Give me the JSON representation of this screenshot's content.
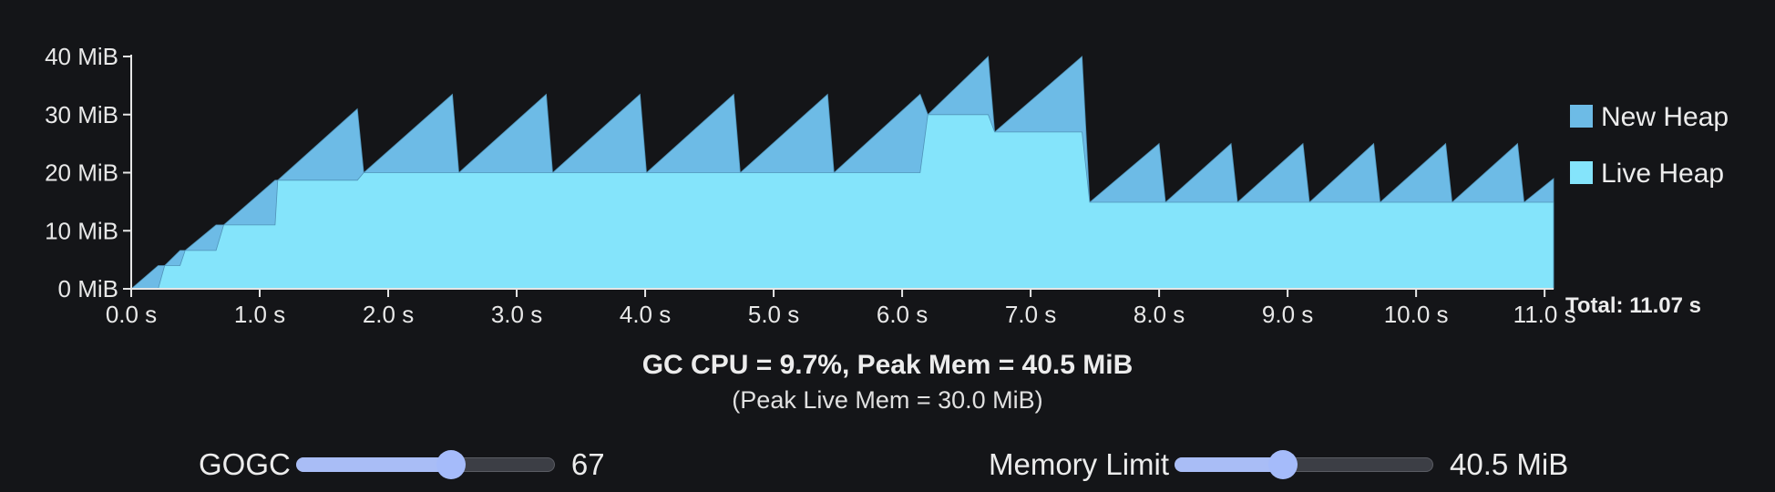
{
  "chart_data": {
    "type": "area",
    "title": "",
    "xlabel": "",
    "ylabel": "",
    "xlim": [
      0,
      11.07
    ],
    "ylim": [
      0,
      40
    ],
    "x_ticks": [
      0,
      1,
      2,
      3,
      4,
      5,
      6,
      7,
      8,
      9,
      10,
      11
    ],
    "x_tick_labels": [
      "0.0 s",
      "1.0 s",
      "2.0 s",
      "3.0 s",
      "4.0 s",
      "5.0 s",
      "6.0 s",
      "7.0 s",
      "8.0 s",
      "9.0 s",
      "10.0 s",
      "11.0 s"
    ],
    "y_ticks": [
      0,
      10,
      20,
      30,
      40
    ],
    "y_tick_labels": [
      "0 MiB",
      "10 MiB",
      "20 MiB",
      "30 MiB",
      "40 MiB"
    ],
    "legend_position": "right",
    "total_label": "Total: 11.07 s",
    "series": [
      {
        "name": "New Heap",
        "color": "#6dbbe6",
        "points": [
          [
            0,
            0
          ],
          [
            0.21,
            4
          ],
          [
            0.26,
            4
          ],
          [
            0.26,
            4
          ],
          [
            0.38,
            6.6
          ],
          [
            0.42,
            6.6
          ],
          [
            0.42,
            6.6
          ],
          [
            0.66,
            11
          ],
          [
            0.72,
            11
          ],
          [
            0.72,
            11
          ],
          [
            1.12,
            18.7
          ],
          [
            1.14,
            18.7
          ],
          [
            1.14,
            18.7
          ],
          [
            1.76,
            31
          ],
          [
            1.81,
            20
          ],
          [
            2.5,
            33.5
          ],
          [
            2.55,
            20
          ],
          [
            3.23,
            33.5
          ],
          [
            3.28,
            20
          ],
          [
            3.96,
            33.5
          ],
          [
            4.01,
            20
          ],
          [
            4.69,
            33.5
          ],
          [
            4.74,
            20
          ],
          [
            5.42,
            33.5
          ],
          [
            5.47,
            20
          ],
          [
            6.14,
            33.5
          ],
          [
            6.2,
            30
          ],
          [
            6.67,
            40
          ],
          [
            6.72,
            27
          ],
          [
            7.4,
            40
          ],
          [
            7.46,
            14.9
          ],
          [
            8.0,
            25
          ],
          [
            8.05,
            14.9
          ],
          [
            8.56,
            25
          ],
          [
            8.61,
            14.9
          ],
          [
            9.12,
            25
          ],
          [
            9.17,
            14.9
          ],
          [
            9.67,
            25
          ],
          [
            9.72,
            14.9
          ],
          [
            10.23,
            25
          ],
          [
            10.28,
            14.9
          ],
          [
            10.79,
            25
          ],
          [
            10.84,
            14.9
          ],
          [
            11.07,
            19
          ]
        ]
      },
      {
        "name": "Live Heap",
        "color": "#84e4fb",
        "points": [
          [
            0,
            0
          ],
          [
            0.21,
            0
          ],
          [
            0.26,
            4
          ],
          [
            0.38,
            4
          ],
          [
            0.42,
            6.6
          ],
          [
            0.66,
            6.6
          ],
          [
            0.72,
            11
          ],
          [
            1.12,
            11
          ],
          [
            1.14,
            18.7
          ],
          [
            1.76,
            18.7
          ],
          [
            1.81,
            20
          ],
          [
            6.14,
            20
          ],
          [
            6.2,
            30
          ],
          [
            6.67,
            30
          ],
          [
            6.72,
            27
          ],
          [
            7.4,
            27
          ],
          [
            7.46,
            14.9
          ],
          [
            11.07,
            14.9
          ]
        ]
      }
    ]
  },
  "summary": {
    "gc_line": "GC CPU = 9.7%, Peak Mem = 40.5 MiB",
    "peak_live_line": "(Peak Live Mem = 30.0 MiB)"
  },
  "controls": {
    "gogc": {
      "label": "GOGC",
      "value": "67",
      "position": 0.61
    },
    "memory_limit": {
      "label": "Memory Limit",
      "value": "40.5 MiB",
      "position": 0.41
    }
  }
}
